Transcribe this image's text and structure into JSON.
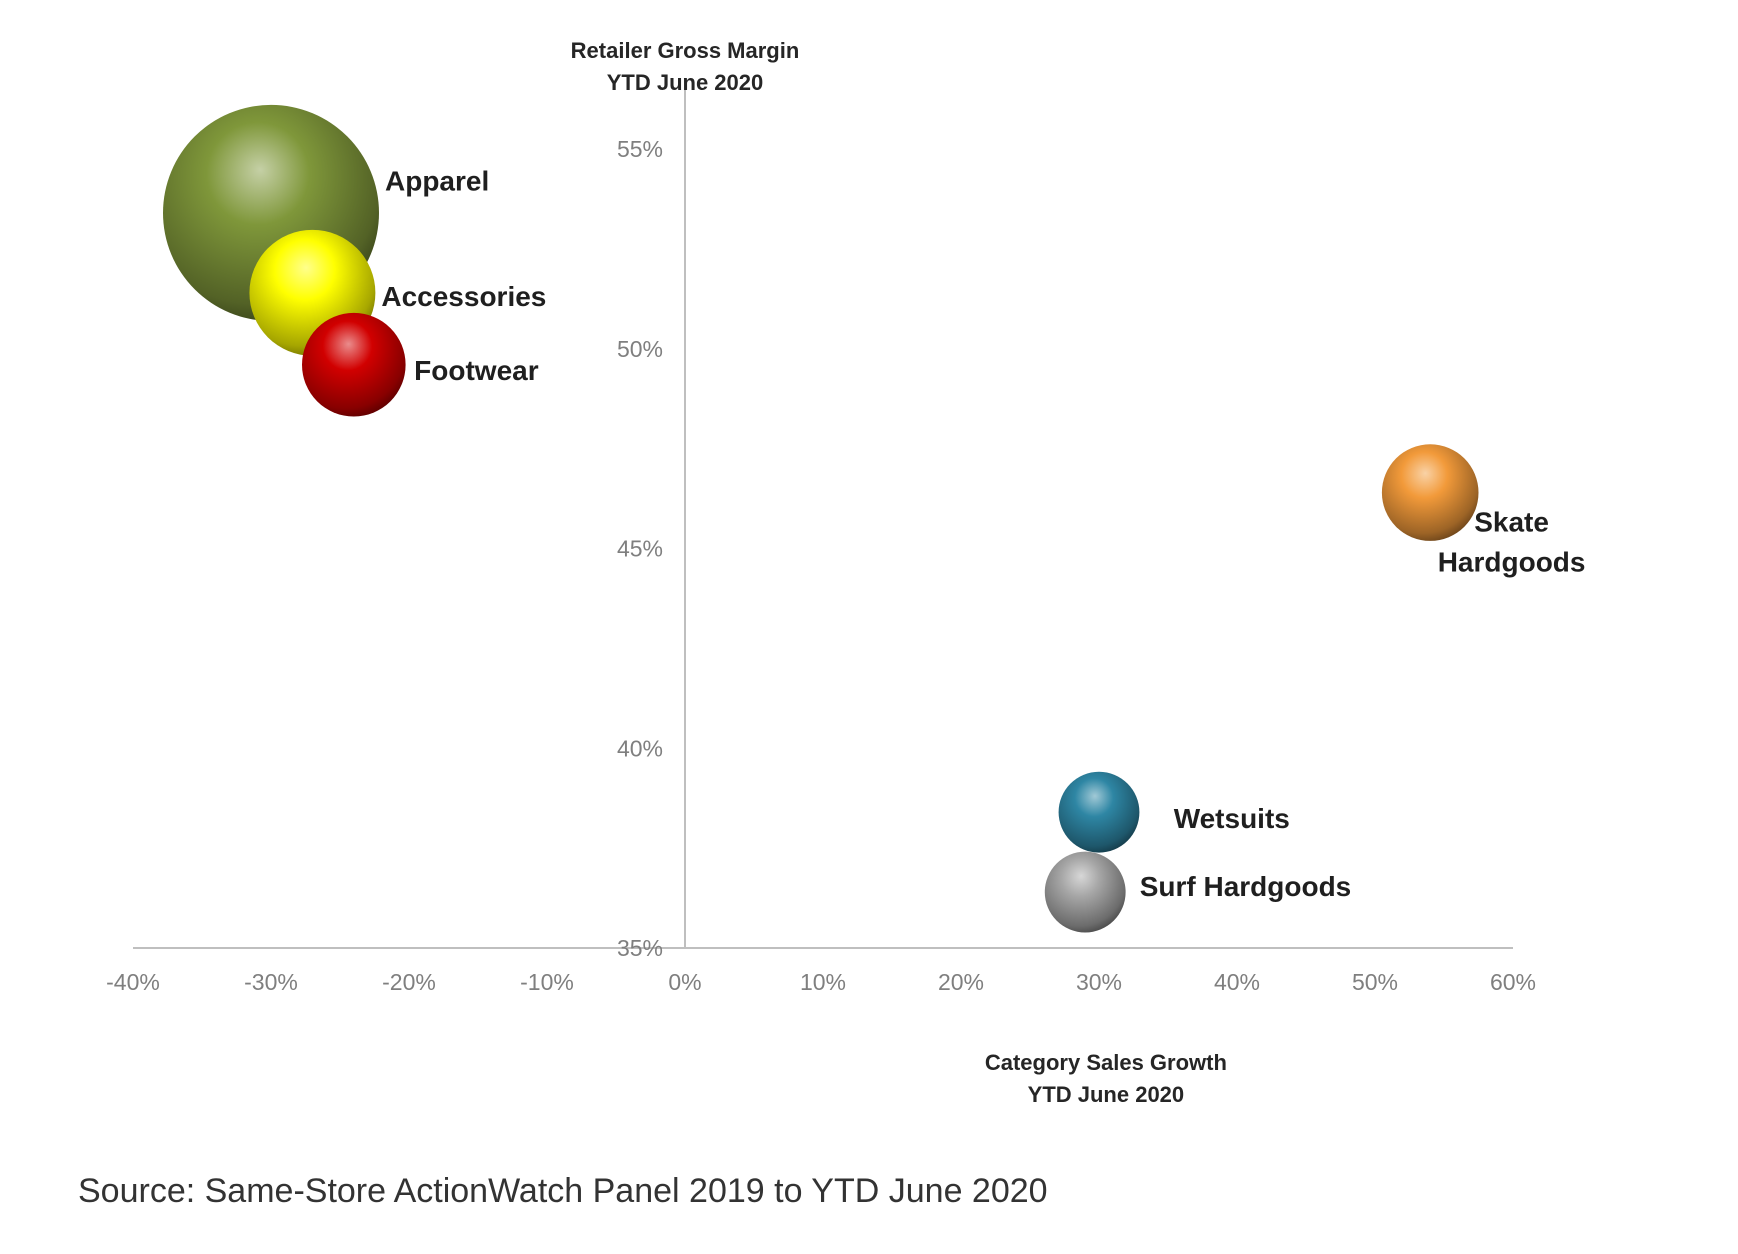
{
  "chart_data": {
    "type": "bubble",
    "title": "",
    "xlabel": [
      "Category Sales Growth",
      "YTD June 2020"
    ],
    "ylabel": [
      "Retailer Gross Margin",
      "YTD June 2020"
    ],
    "xlim": [
      -0.4,
      0.6
    ],
    "ylim": [
      0.35,
      0.56
    ],
    "x_ticks": [
      {
        "value": -0.4,
        "label": "-40%"
      },
      {
        "value": -0.3,
        "label": "-30%"
      },
      {
        "value": -0.2,
        "label": "-20%"
      },
      {
        "value": -0.1,
        "label": "-10%"
      },
      {
        "value": 0.0,
        "label": "0%"
      },
      {
        "value": 0.1,
        "label": "10%"
      },
      {
        "value": 0.2,
        "label": "20%"
      },
      {
        "value": 0.3,
        "label": "30%"
      },
      {
        "value": 0.4,
        "label": "40%"
      },
      {
        "value": 0.5,
        "label": "50%"
      },
      {
        "value": 0.6,
        "label": "60%"
      }
    ],
    "y_ticks": [
      {
        "value": 0.35,
        "label": "35%"
      },
      {
        "value": 0.4,
        "label": "40%"
      },
      {
        "value": 0.45,
        "label": "45%"
      },
      {
        "value": 0.5,
        "label": "50%"
      },
      {
        "value": 0.55,
        "label": "55%"
      }
    ],
    "grid": false,
    "legend": "none",
    "points": [
      {
        "name": "Apparel",
        "label_lines": [
          "Apparel"
        ],
        "x": -0.3,
        "y": 0.534,
        "size": 1.0,
        "color": "#7f973a"
      },
      {
        "name": "Accessories",
        "label_lines": [
          "Accessories"
        ],
        "x": -0.27,
        "y": 0.514,
        "size": 0.34,
        "color": "#ffff00"
      },
      {
        "name": "Footwear",
        "label_lines": [
          "Footwear"
        ],
        "x": -0.24,
        "y": 0.496,
        "size": 0.23,
        "color": "#d10000"
      },
      {
        "name": "Skate Hardgoods",
        "label_lines": [
          "Skate",
          "Hardgoods"
        ],
        "x": 0.54,
        "y": 0.464,
        "size": 0.2,
        "color": "#f29a3a"
      },
      {
        "name": "Wetsuits",
        "label_lines": [
          "Wetsuits"
        ],
        "x": 0.3,
        "y": 0.384,
        "size": 0.14,
        "color": "#2e86a4"
      },
      {
        "name": "Surf Hardgoods",
        "label_lines": [
          "Surf Hardgoods"
        ],
        "x": 0.29,
        "y": 0.364,
        "size": 0.14,
        "color": "#a6a6a6"
      }
    ]
  },
  "source_note": "Source:  Same-Store ActionWatch Panel 2019 to YTD June 2020"
}
